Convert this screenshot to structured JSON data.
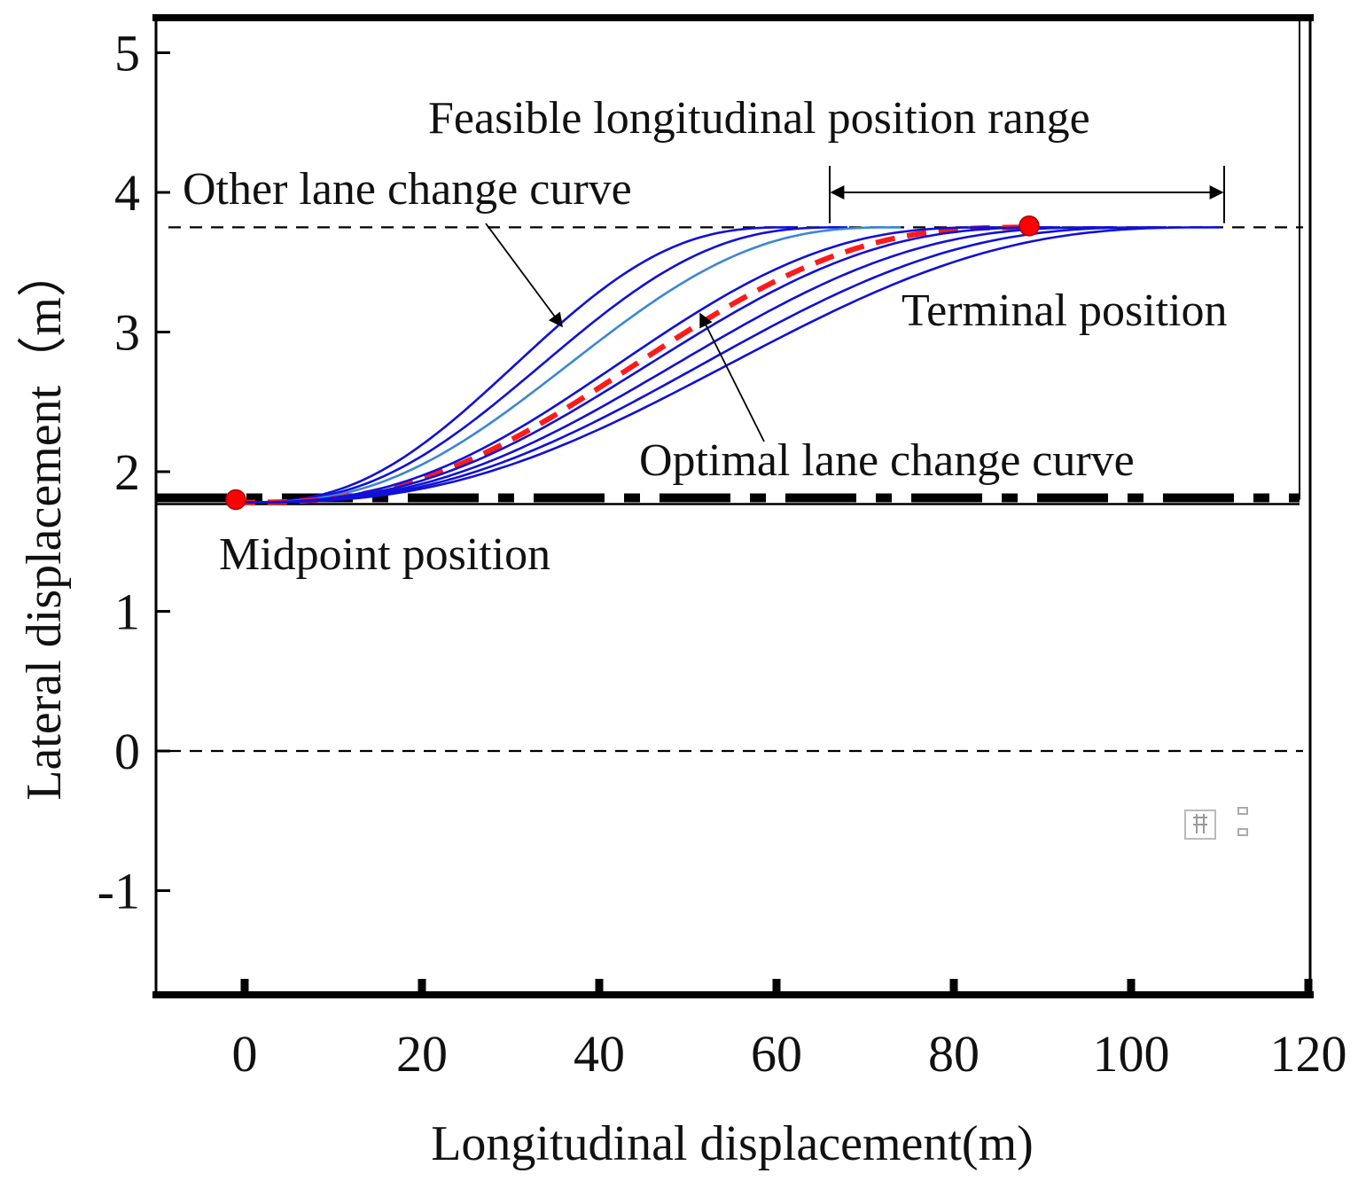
{
  "chart_data": {
    "type": "line",
    "title": "",
    "xlabel": "Longitudinal displacement(m)",
    "ylabel": "Lateral displacement（m）",
    "xlim": [
      -10,
      120
    ],
    "ylim": [
      -1.75,
      5.2
    ],
    "xticks": [
      0,
      20,
      40,
      60,
      80,
      100,
      120
    ],
    "xtick_labels": [
      "0",
      "20",
      "40",
      "60",
      "80",
      "100",
      "120"
    ],
    "yticks": [
      -1,
      0,
      1,
      2,
      3,
      4,
      5
    ],
    "ytick_labels": [
      "-1",
      "0",
      "1",
      "2",
      "3",
      "4",
      "5"
    ],
    "grid": false,
    "legend": "none",
    "lane_lines": [
      {
        "name": "lane-center-upper",
        "y": 3.75,
        "style": "dashed"
      },
      {
        "name": "lane-boundary",
        "y": 1.8,
        "style": "thick-dashed"
      },
      {
        "name": "lane-center-lower",
        "y": 0,
        "style": "dashed"
      }
    ],
    "road_edges": [
      {
        "name": "road-edge-top",
        "y": 5.25
      },
      {
        "name": "road-edge-bottom",
        "y": -1.75
      }
    ],
    "start_y": 1.78,
    "end_y": 3.75,
    "curve_start_x": -1,
    "series": [
      {
        "name": "Lane change curve 1",
        "end_x": 62,
        "color": "#1010d8"
      },
      {
        "name": "Lane change curve 2",
        "end_x": 68,
        "color": "#1010d8"
      },
      {
        "name": "Lane change curve 3",
        "end_x": 74,
        "color": "#3a86d6"
      },
      {
        "name": "Optimal lane change curve",
        "end_x": 89,
        "color": "#ff1a1a",
        "dashed": true
      },
      {
        "name": "Lane change curve 5",
        "end_x": 85,
        "color": "#1010d8"
      },
      {
        "name": "Lane change curve 6",
        "end_x": 92,
        "color": "#1010d8"
      },
      {
        "name": "Lane change curve 7",
        "end_x": 98,
        "color": "#1010d8"
      },
      {
        "name": "Lane change curve 8",
        "end_x": 104,
        "color": "#1010d8"
      },
      {
        "name": "Lane change curve 9",
        "end_x": 110,
        "color": "#1010d8"
      }
    ],
    "points": [
      {
        "name": "Midpoint position",
        "x": -1,
        "y": 1.8,
        "color": "#ff0000"
      },
      {
        "name": "Terminal position",
        "x": 88.5,
        "y": 3.76,
        "color": "#ff0000"
      }
    ],
    "range": {
      "from_x": 66,
      "to_x": 110.5,
      "y": 4.0
    },
    "annotations": {
      "range_label": "Feasible longitudinal position range",
      "other_curve": "Other lane change curve",
      "terminal": "Terminal position",
      "optimal": "Optimal lane change curve",
      "midpoint": "Midpoint position"
    }
  }
}
